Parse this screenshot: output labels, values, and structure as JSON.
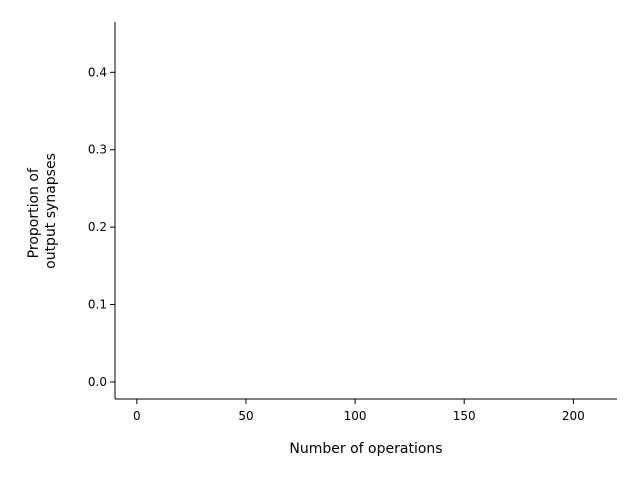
{
  "chart_data": {
    "type": "line",
    "title": "",
    "xlabel": "Number of operations",
    "ylabel": [
      "Proportion of",
      "output synapses"
    ],
    "xlim": [
      -10,
      220
    ],
    "ylim": [
      -0.022,
      0.465
    ],
    "xticks": [
      0,
      50,
      100,
      150,
      200
    ],
    "xtick_labels": [
      "0",
      "50",
      "100",
      "150",
      "200"
    ],
    "yticks": [
      0.0,
      0.1,
      0.2,
      0.3,
      0.4
    ],
    "ytick_labels": [
      "0.0",
      "0.1",
      "0.2",
      "0.3",
      "0.4"
    ],
    "series": [],
    "grid": false,
    "spines": [
      "left",
      "bottom"
    ]
  }
}
